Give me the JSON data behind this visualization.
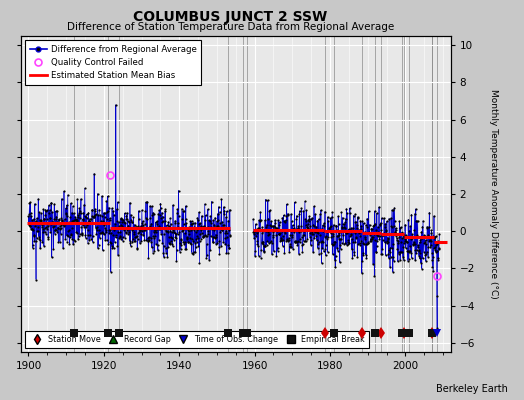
{
  "title": "COLUMBUS JUNCT 2 SSW",
  "subtitle": "Difference of Station Temperature Data from Regional Average",
  "ylabel_right": "Monthly Temperature Anomaly Difference (°C)",
  "watermark": "Berkeley Earth",
  "xlim": [
    1898,
    2012
  ],
  "ylim": [
    -6.5,
    10.5
  ],
  "yticks": [
    -6,
    -4,
    -2,
    0,
    2,
    4,
    6,
    8,
    10
  ],
  "xticks": [
    1900,
    1920,
    1940,
    1960,
    1980,
    2000
  ],
  "bg_color": "#c8c8c8",
  "plot_bg_color": "#e8e8e8",
  "grid_color": "#ffffff",
  "data_line_color": "#0000cc",
  "data_marker_color": "#000000",
  "bias_line_color": "#ff0000",
  "qc_fail_color": "#ff44ff",
  "station_move_color": "#cc0000",
  "record_gap_color": "#006600",
  "obs_change_color": "#0000cc",
  "emp_break_color": "#111111",
  "station_moves": [
    1978.75,
    1988.5,
    1993.5,
    1999.5,
    2007.0
  ],
  "empirical_breaks": [
    1912.0,
    1921.0,
    1924.0,
    1953.0,
    1957.0,
    1958.0,
    1981.0,
    1992.0,
    1999.0,
    2001.0,
    2007.0
  ],
  "obs_change": [
    2008.5
  ],
  "qc_fail_points": [
    [
      1921.5,
      3.0
    ],
    [
      2008.5,
      -2.4
    ]
  ],
  "gap_start": 1953.5,
  "gap_end": 1959.5,
  "seed": 42,
  "year_start": 1900,
  "year_end": 2009,
  "bias_segments": [
    {
      "xstart": 1899.5,
      "xend": 1921.5,
      "bias": 0.45
    },
    {
      "xstart": 1921.5,
      "xend": 1953.5,
      "bias": 0.15
    },
    {
      "xstart": 1959.5,
      "xend": 1978.5,
      "bias": 0.05
    },
    {
      "xstart": 1978.5,
      "xend": 1988.5,
      "bias": 0.0
    },
    {
      "xstart": 1988.5,
      "xend": 1993.5,
      "bias": -0.1
    },
    {
      "xstart": 1993.5,
      "xend": 1999.5,
      "bias": -0.15
    },
    {
      "xstart": 1999.5,
      "xend": 2007.5,
      "bias": -0.3
    },
    {
      "xstart": 2007.5,
      "xend": 2011.0,
      "bias": -0.6
    }
  ],
  "marker_y": -5.5,
  "vline_color": "#888888",
  "vline_alpha": 0.7
}
